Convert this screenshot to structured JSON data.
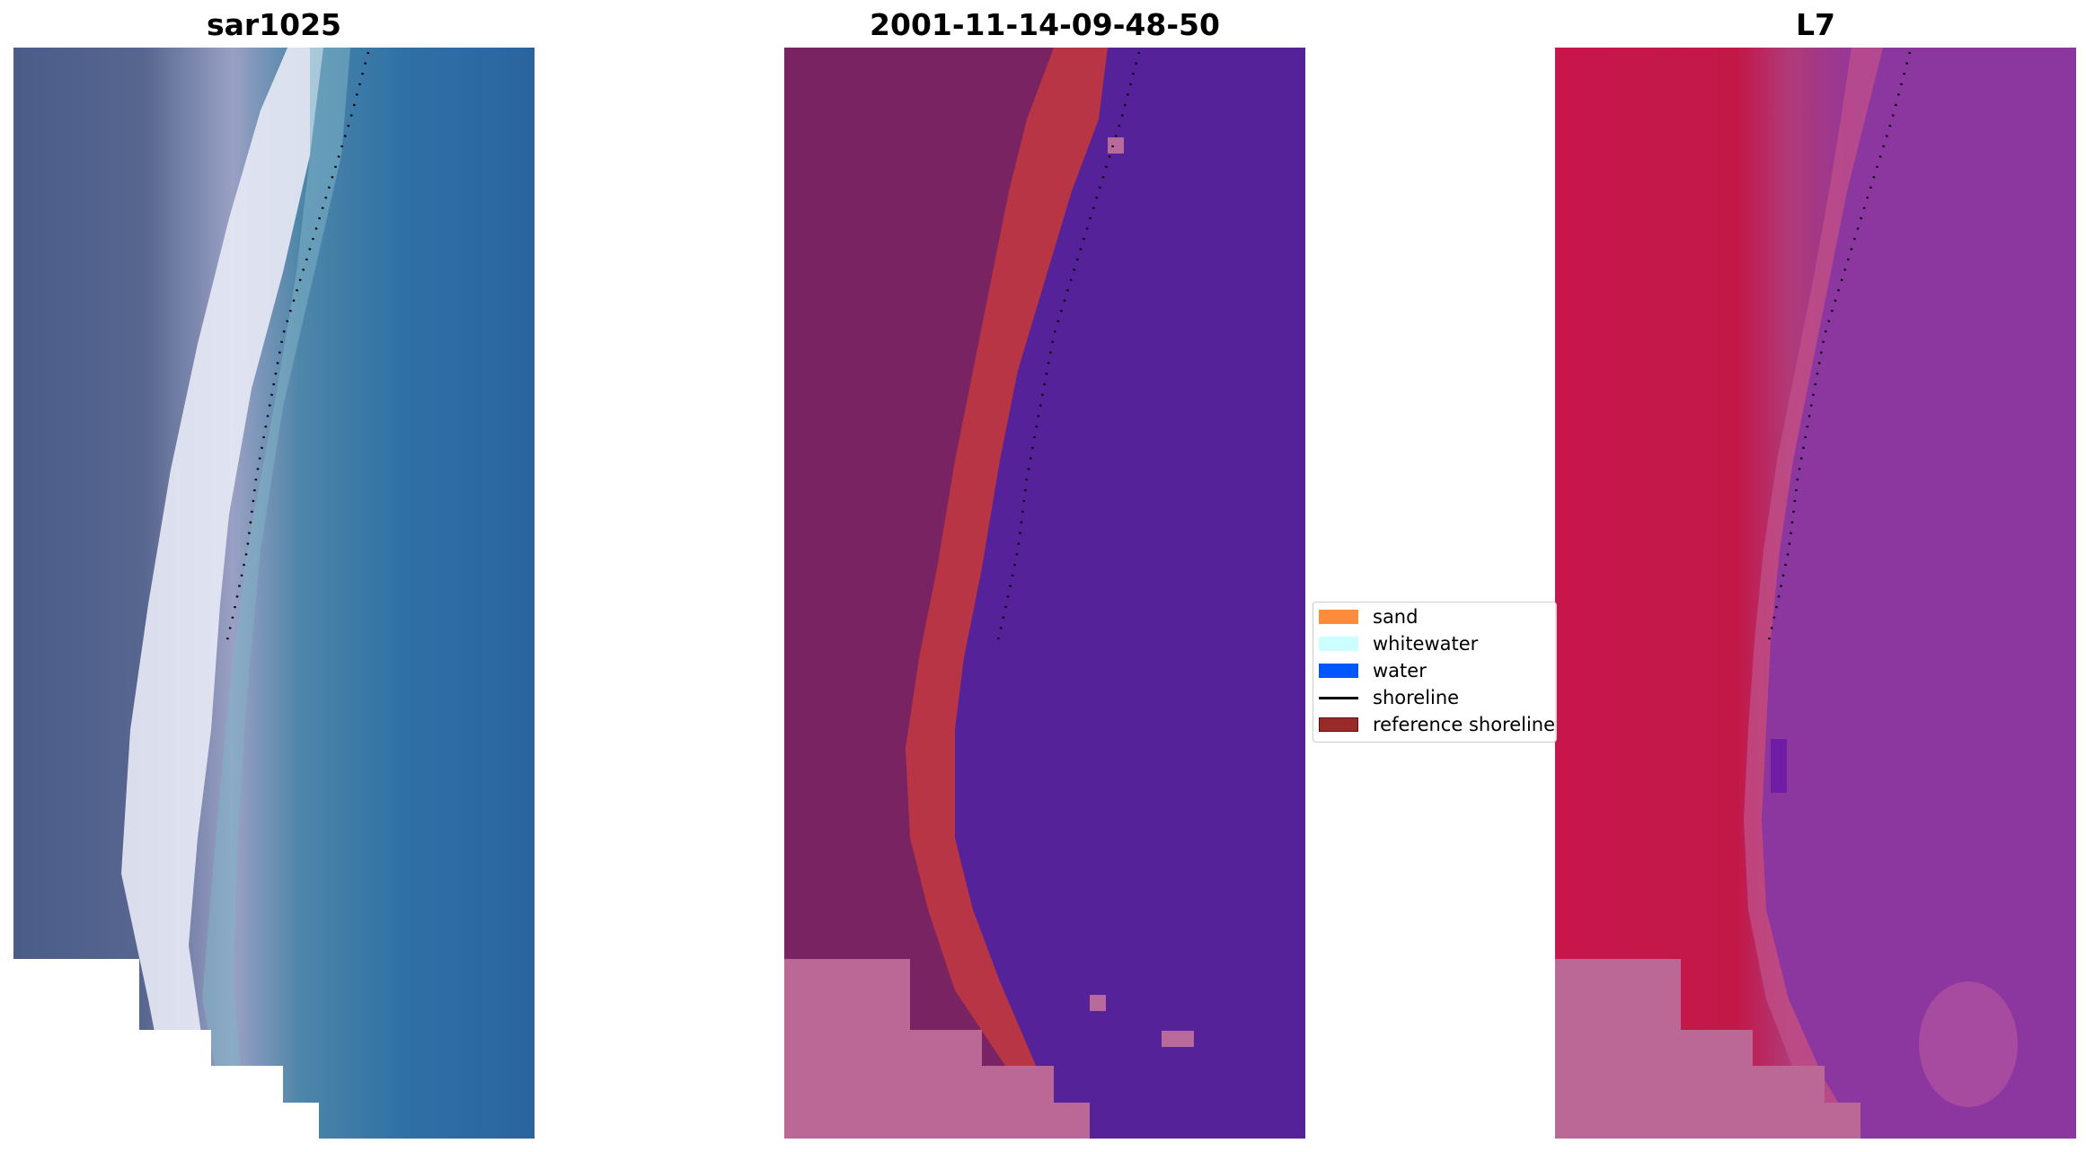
{
  "panels": {
    "left": {
      "title": "sar1025"
    },
    "middle": {
      "title": "2001-11-14-09-48-50"
    },
    "right": {
      "title": "L7"
    }
  },
  "legend": {
    "items": [
      {
        "label": "sand",
        "color": "#ff8c3a",
        "kind": "patch"
      },
      {
        "label": "whitewater",
        "color": "#ccffff",
        "kind": "patch"
      },
      {
        "label": "water",
        "color": "#0057ff",
        "kind": "patch"
      },
      {
        "label": "shoreline",
        "color": "#000000",
        "kind": "line"
      },
      {
        "label": "reference shoreline",
        "color": "#9a2a2a",
        "kind": "patch"
      }
    ]
  },
  "colors": {
    "left_land": "#4a5a8a",
    "left_beach": "#e8eaf4",
    "left_water": "#2f6aa3",
    "middle_land": "#7a2260",
    "middle_sand_class": "#b83545",
    "middle_water_class": "#56229a",
    "middle_nodata": "#bb6897",
    "right_land": "#c5174a",
    "right_water": "#8c36a0",
    "right_nodata": "#bb6897"
  }
}
